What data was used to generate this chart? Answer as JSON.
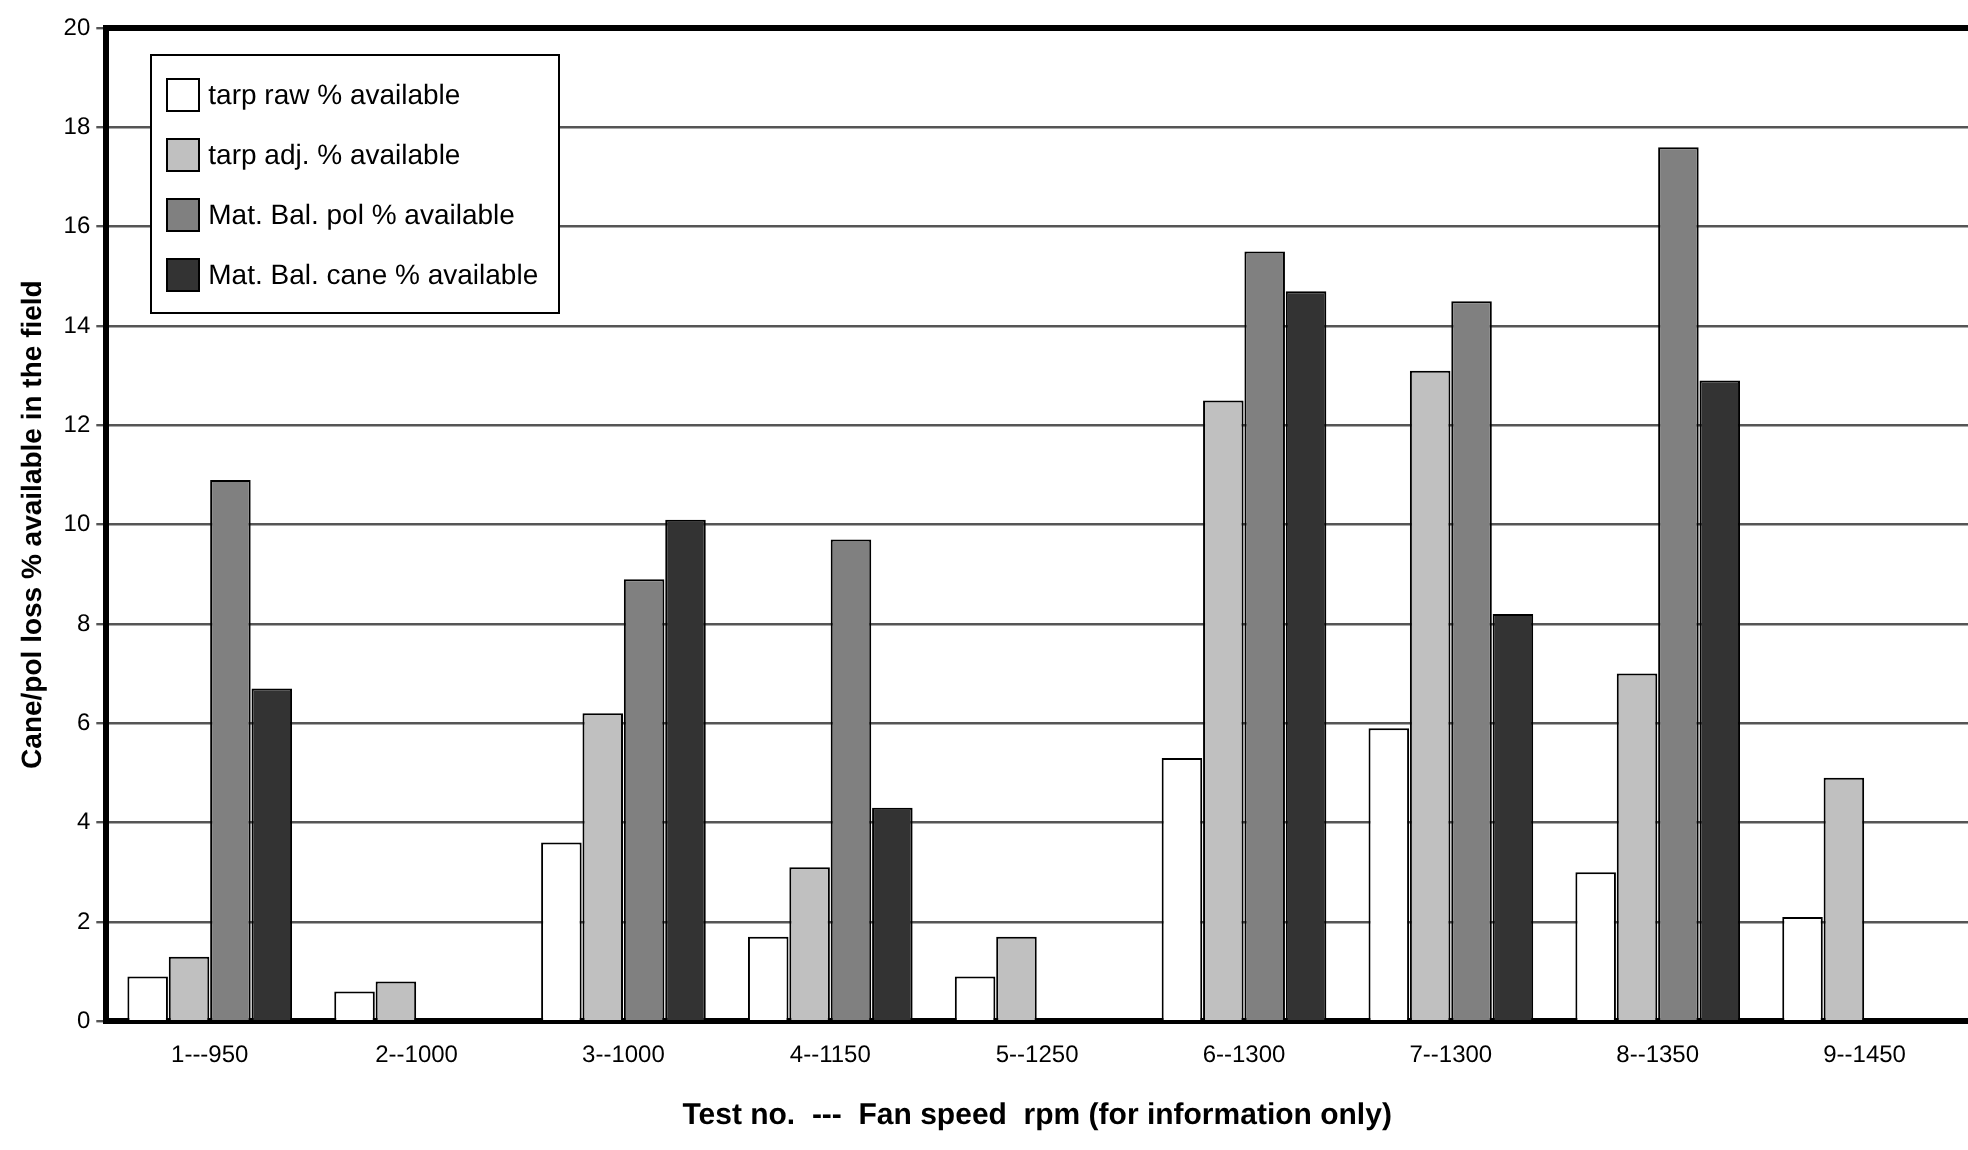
{
  "chart_data": {
    "type": "bar",
    "xlabel": "Test no.  ---  Fan speed  rpm (for information only)",
    "ylabel": "Cane/pol loss % available in the field",
    "categories": [
      "1---950",
      "2--1000",
      "3--1000",
      "4--1150",
      "5--1250",
      "6--1300",
      "7--1300",
      "8--1350",
      "9--1450"
    ],
    "series": [
      {
        "name": "tarp raw % available",
        "color": "#ffffff",
        "values": [
          0.9,
          0.6,
          3.6,
          1.7,
          0.9,
          5.3,
          5.9,
          3.0,
          2.1
        ]
      },
      {
        "name": "tarp adj. % available",
        "color": "#c0c0c0",
        "values": [
          1.3,
          0.8,
          6.2,
          3.1,
          1.7,
          12.5,
          13.1,
          7.0,
          4.9
        ]
      },
      {
        "name": "Mat. Bal. pol % available",
        "color": "#808080",
        "values": [
          10.9,
          null,
          8.9,
          9.7,
          null,
          15.5,
          14.5,
          17.6,
          null
        ]
      },
      {
        "name": "Mat. Bal. cane % available",
        "color": "#333333",
        "values": [
          6.7,
          null,
          10.1,
          4.3,
          null,
          14.7,
          8.2,
          12.9,
          null
        ]
      }
    ],
    "ylim": [
      0,
      20
    ],
    "yticks": [
      0,
      2,
      4,
      6,
      8,
      10,
      12,
      14,
      16,
      18,
      20
    ],
    "grid": "y",
    "legend": "top left"
  }
}
